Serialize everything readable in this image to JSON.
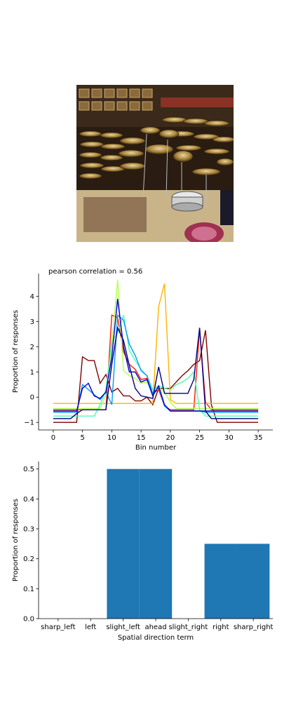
{
  "photo": {
    "description_icon": "drum-shop-photo-icon"
  },
  "chart_data": [
    {
      "type": "line",
      "title": "pearson correlation = 0.56",
      "xlabel": "Bin number",
      "ylabel": "Proportion of responses",
      "xlim": [
        -2.5,
        37.5
      ],
      "ylim": [
        -1.3,
        4.9
      ],
      "xticks": [
        0,
        5,
        10,
        15,
        20,
        25,
        30,
        35
      ],
      "yticks": [
        -1,
        0,
        1,
        2,
        3,
        4
      ],
      "grid": false,
      "series": [
        {
          "color": "#800000",
          "values": [
            -1,
            -1,
            -1,
            -1,
            -1,
            1.6,
            1.45,
            1.45,
            0.55,
            0.9,
            0.2,
            0.35,
            0.05,
            0.05,
            -0.15,
            -0.15,
            0,
            -0.3,
            0.35,
            0.35,
            0.35,
            0.6,
            0.85,
            1.05,
            1.3,
            1.45,
            2.65,
            -0.3,
            -1,
            -1,
            -1,
            -1,
            -1,
            -1,
            -1,
            -1
          ]
        },
        {
          "color": "#ff1a00",
          "values": [
            -0.5,
            -0.5,
            -0.5,
            -0.5,
            -0.5,
            -0.5,
            -0.5,
            -0.5,
            -0.5,
            -0.5,
            3.25,
            3.15,
            1.8,
            1.3,
            1.1,
            0.7,
            0.75,
            0.15,
            0.3,
            -0.35,
            -0.5,
            -0.5,
            -0.5,
            -0.5,
            -0.5,
            2.7,
            -0.2,
            -0.5,
            -0.5,
            -0.5,
            -0.5,
            -0.5,
            -0.5,
            -0.5,
            -0.5,
            -0.5
          ]
        },
        {
          "color": "#ffb300",
          "values": [
            -0.25,
            -0.25,
            -0.25,
            -0.25,
            -0.25,
            -0.25,
            -0.25,
            -0.25,
            -0.25,
            -0.25,
            -0.25,
            -0.25,
            -0.25,
            -0.25,
            -0.25,
            -0.25,
            -0.25,
            -0.25,
            3.6,
            4.5,
            -0.1,
            -0.25,
            -0.25,
            -0.25,
            -0.25,
            -0.25,
            -0.25,
            -0.25,
            -0.25,
            -0.25,
            -0.25,
            -0.25,
            -0.25,
            -0.25,
            -0.25,
            -0.25
          ]
        },
        {
          "color": "#b3ff4d",
          "values": [
            -0.45,
            -0.45,
            -0.45,
            -0.45,
            -0.45,
            -0.45,
            -0.45,
            -0.45,
            -0.45,
            0.1,
            2.05,
            4.65,
            1.05,
            0.85,
            0.75,
            0.55,
            0.6,
            0.35,
            0.4,
            0.2,
            -0.2,
            -0.45,
            -0.45,
            -0.45,
            -0.45,
            -0.45,
            -0.45,
            -0.45,
            -0.45,
            -0.45,
            -0.45,
            -0.45,
            -0.45,
            -0.45,
            -0.45,
            -0.45
          ]
        },
        {
          "color": "#4dffb3",
          "values": [
            -0.75,
            -0.75,
            -0.75,
            -0.75,
            -0.75,
            -0.75,
            -0.75,
            -0.75,
            -0.3,
            0.3,
            2.2,
            2.55,
            3.25,
            1.85,
            1.45,
            1.1,
            0.85,
            0.3,
            0.45,
            0.35,
            0.3,
            0.5,
            0.6,
            0.75,
            1.0,
            -0.5,
            -0.75,
            -0.75,
            -0.75,
            -0.75,
            -0.75,
            -0.75,
            -0.75,
            -0.75,
            -0.75,
            -0.75
          ]
        },
        {
          "color": "#0099ff",
          "values": [
            -0.6,
            -0.6,
            -0.6,
            -0.6,
            -0.6,
            0.5,
            0.3,
            0.1,
            -0.1,
            0.2,
            -0.3,
            3.25,
            3.05,
            2.1,
            1.65,
            1.05,
            0.85,
            0.15,
            0.4,
            -0.35,
            -0.55,
            -0.55,
            -0.55,
            -0.55,
            -0.55,
            -0.55,
            -0.6,
            -0.6,
            -0.6,
            -0.6,
            -0.6,
            -0.6,
            -0.6,
            -0.6,
            -0.6,
            -0.6
          ]
        },
        {
          "color": "#0000cc",
          "values": [
            -0.55,
            -0.55,
            -0.55,
            -0.55,
            -0.55,
            0.35,
            0.55,
            0.05,
            -0.05,
            0.2,
            1.6,
            3.9,
            2.0,
            1.0,
            1.0,
            0.6,
            0.7,
            0.05,
            0.45,
            -0.3,
            -0.55,
            -0.55,
            -0.55,
            -0.55,
            -0.55,
            -0.55,
            -0.55,
            -0.55,
            -0.55,
            -0.55,
            -0.55,
            -0.55,
            -0.55,
            -0.55,
            -0.55,
            -0.55
          ]
        },
        {
          "color": "#000080",
          "values": [
            -0.85,
            -0.85,
            -0.85,
            -0.85,
            -0.65,
            -0.5,
            -0.5,
            -0.5,
            -0.5,
            -0.5,
            1.3,
            2.75,
            2.25,
            1.25,
            0.35,
            0.05,
            0.0,
            -0.05,
            1.2,
            0.15,
            0.15,
            0.15,
            0.15,
            0.15,
            0.7,
            2.75,
            -0.55,
            -0.85,
            -0.85,
            -0.85,
            -0.85,
            -0.85,
            -0.85,
            -0.85,
            -0.85,
            -0.85
          ]
        }
      ]
    },
    {
      "type": "bar",
      "xlabel": "Spatial direction term",
      "ylabel": "Proportion of responses",
      "ylim": [
        0,
        0.525
      ],
      "yticks": [
        "0.0",
        "0.1",
        "0.2",
        "0.3",
        "0.4",
        "0.5"
      ],
      "categories": [
        "sharp_left",
        "left",
        "slight_left",
        "ahead",
        "slight_right",
        "right",
        "sharp_right"
      ],
      "values": [
        0,
        0,
        0.5,
        0.5,
        0,
        0.25,
        0.25
      ],
      "bar_color": "#1f77b4",
      "grid": false
    }
  ]
}
